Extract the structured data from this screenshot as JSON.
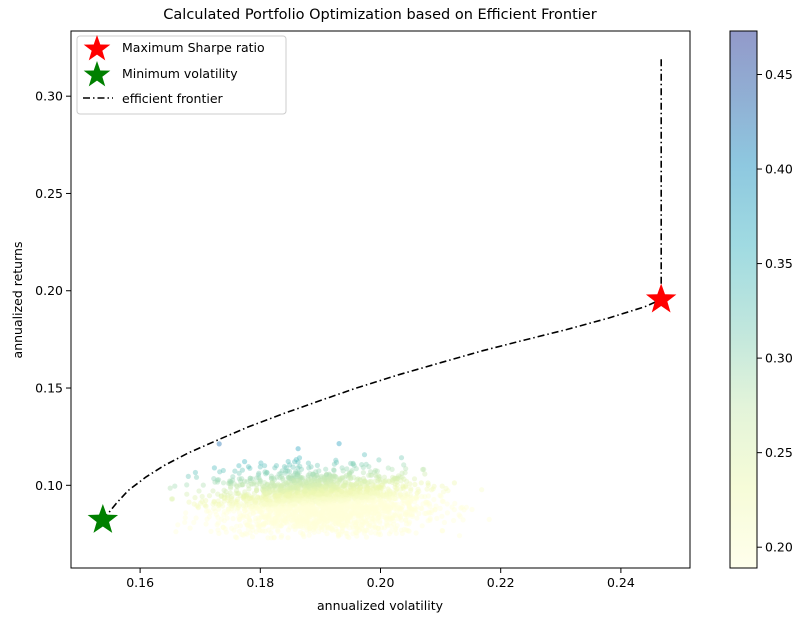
{
  "chart_data": {
    "type": "scatter",
    "title": "Calculated Portfolio Optimization based on Efficient Frontier",
    "xlabel": "annualized volatility",
    "ylabel": "annualized returns",
    "xlim": [
      0.1485,
      0.2515
    ],
    "ylim": [
      0.0575,
      0.3335
    ],
    "x_ticks": [
      {
        "value": 0.16,
        "label": "0.16"
      },
      {
        "value": 0.18,
        "label": "0.18"
      },
      {
        "value": 0.2,
        "label": "0.20"
      },
      {
        "value": 0.22,
        "label": "0.22"
      },
      {
        "value": 0.24,
        "label": "0.24"
      }
    ],
    "y_ticks": [
      {
        "value": 0.1,
        "label": "0.10"
      },
      {
        "value": 0.15,
        "label": "0.15"
      },
      {
        "value": 0.2,
        "label": "0.20"
      },
      {
        "value": 0.25,
        "label": "0.25"
      },
      {
        "value": 0.3,
        "label": "0.30"
      }
    ],
    "grid": false,
    "legend_position": "top-left",
    "legend": [
      {
        "label": "Maximum Sharpe ratio",
        "marker": "star",
        "color": "#ff0000"
      },
      {
        "label": "Minimum volatility",
        "marker": "star",
        "color": "#008000"
      },
      {
        "label": "efficient frontier",
        "marker": "dashdot-line",
        "color": "#000000"
      }
    ],
    "max_sharpe": {
      "x": 0.2467,
      "y": 0.1955
    },
    "min_volatility": {
      "x": 0.1538,
      "y": 0.0822
    },
    "efficient_frontier": {
      "x": [
        0.1538,
        0.156,
        0.158,
        0.161,
        0.164,
        0.168,
        0.173,
        0.178,
        0.184,
        0.19,
        0.196,
        0.203,
        0.21,
        0.217,
        0.224,
        0.231,
        0.238,
        0.244,
        0.2467,
        0.2467
      ],
      "y": [
        0.0822,
        0.0906,
        0.0973,
        0.1043,
        0.1102,
        0.1166,
        0.1234,
        0.13,
        0.137,
        0.1436,
        0.15,
        0.1568,
        0.163,
        0.1692,
        0.1747,
        0.1801,
        0.186,
        0.1918,
        0.1955,
        0.32
      ]
    },
    "portfolio_cloud": {
      "x_center": 0.19,
      "x_spread": 0.0085,
      "x_min": 0.165,
      "x_max": 0.221,
      "y_center": 0.091,
      "y_spread": 0.0085,
      "y_min": 0.073,
      "y_max": 0.129,
      "count": 2600
    },
    "colorbar": {
      "min": 0.189,
      "max": 0.473,
      "colormap": "YlGnBu",
      "ticks": [
        {
          "value": 0.2,
          "label": "0.20"
        },
        {
          "value": 0.25,
          "label": "0.25"
        },
        {
          "value": 0.3,
          "label": "0.30"
        },
        {
          "value": 0.35,
          "label": "0.35"
        },
        {
          "value": 0.4,
          "label": "0.40"
        },
        {
          "value": 0.45,
          "label": "0.45"
        }
      ]
    }
  }
}
